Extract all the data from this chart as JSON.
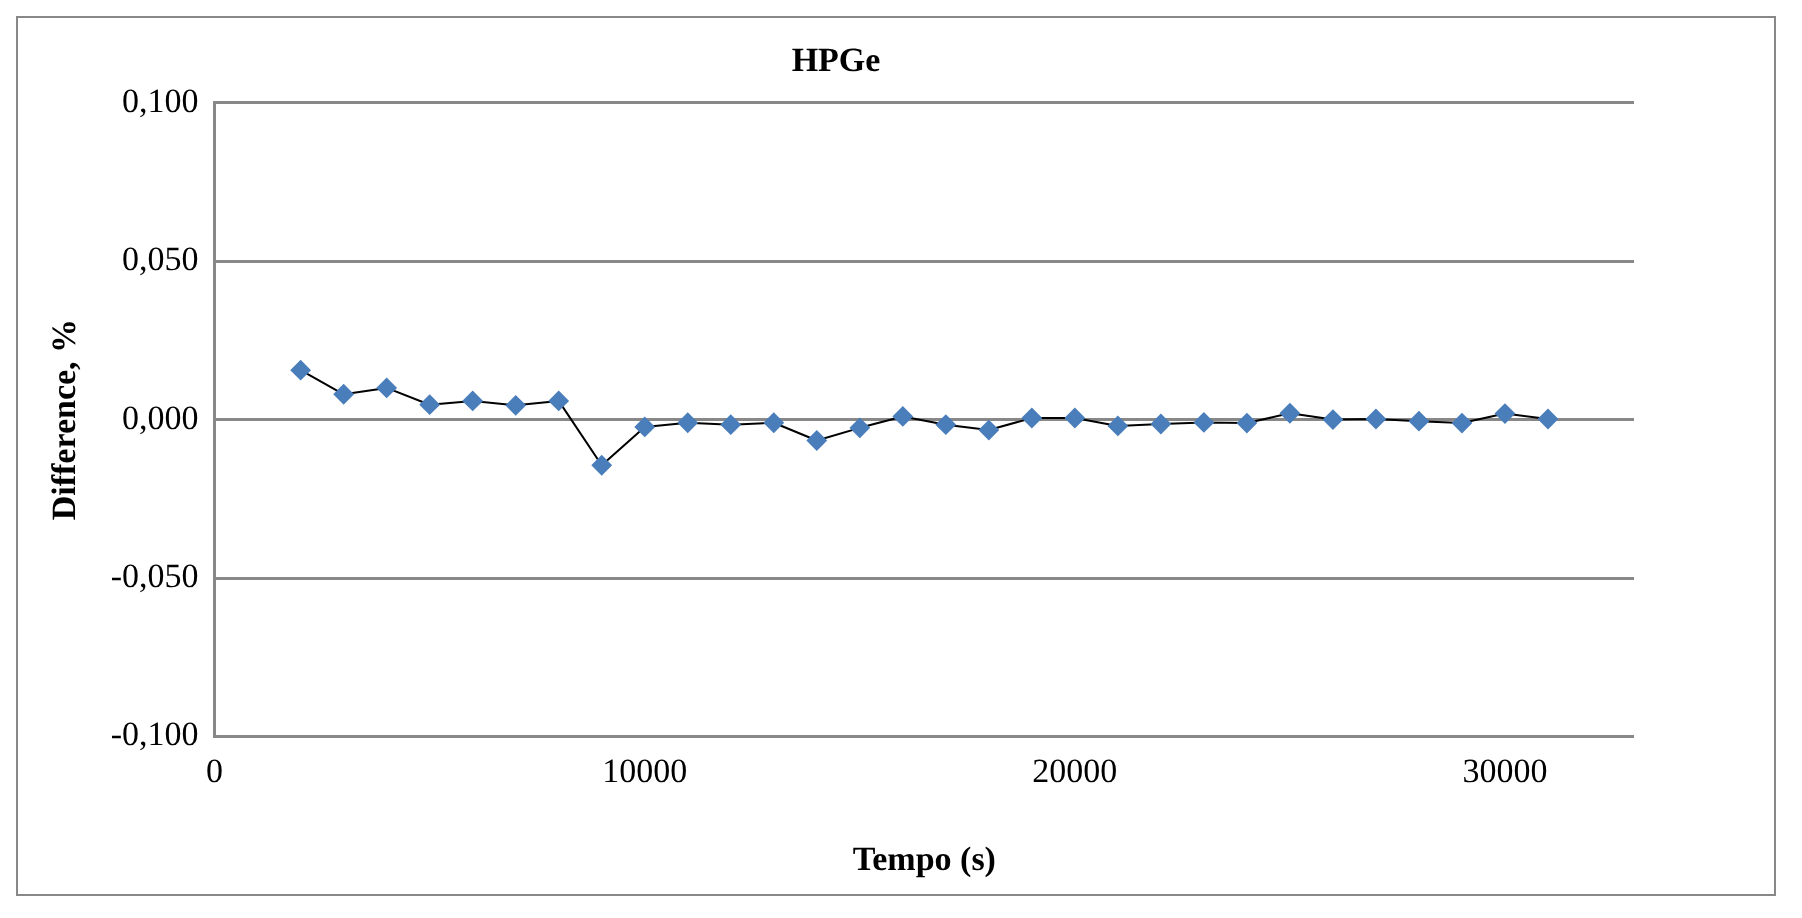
{
  "chart_data": {
    "type": "line",
    "title": "HPGe",
    "xlabel": "Tempo (s)",
    "ylabel": "Difference, %",
    "x": [
      2000,
      3000,
      4000,
      5000,
      6000,
      7000,
      8000,
      9000,
      10000,
      11000,
      12000,
      13000,
      14000,
      15000,
      16000,
      17000,
      18000,
      19000,
      20000,
      21000,
      22000,
      23000,
      24000,
      25000,
      26000,
      27000,
      28000,
      29000,
      30000,
      31000
    ],
    "series": [
      {
        "color": "#4a7ebb",
        "values": [
          0.0156,
          0.008,
          0.01,
          0.0047,
          0.0059,
          0.0045,
          0.0059,
          -0.0144,
          -0.0023,
          -0.001,
          -0.0016,
          -0.001,
          -0.0066,
          -0.0026,
          0.001,
          -0.0016,
          -0.0033,
          0.0005,
          0.0005,
          -0.002,
          -0.0014,
          -0.0009,
          -0.0011,
          0.002,
          0,
          0.0002,
          -0.0005,
          -0.0011,
          0.0019,
          0.0002
        ]
      }
    ],
    "xlim": [
      0,
      33000
    ],
    "xticks": [
      0,
      10000,
      20000,
      30000
    ],
    "ylim": [
      -0.1,
      0.1
    ],
    "yticks": [
      {
        "value": -0.1,
        "label": "-0,100"
      },
      {
        "value": -0.05,
        "label": "-0,050"
      },
      {
        "value": 0,
        "label": "0,000"
      },
      {
        "value": 0.05,
        "label": "0,050"
      },
      {
        "value": 0.1,
        "label": "0,100"
      }
    ],
    "grid": "y",
    "legend": false,
    "marker": "diamond",
    "line_style": "solid"
  }
}
